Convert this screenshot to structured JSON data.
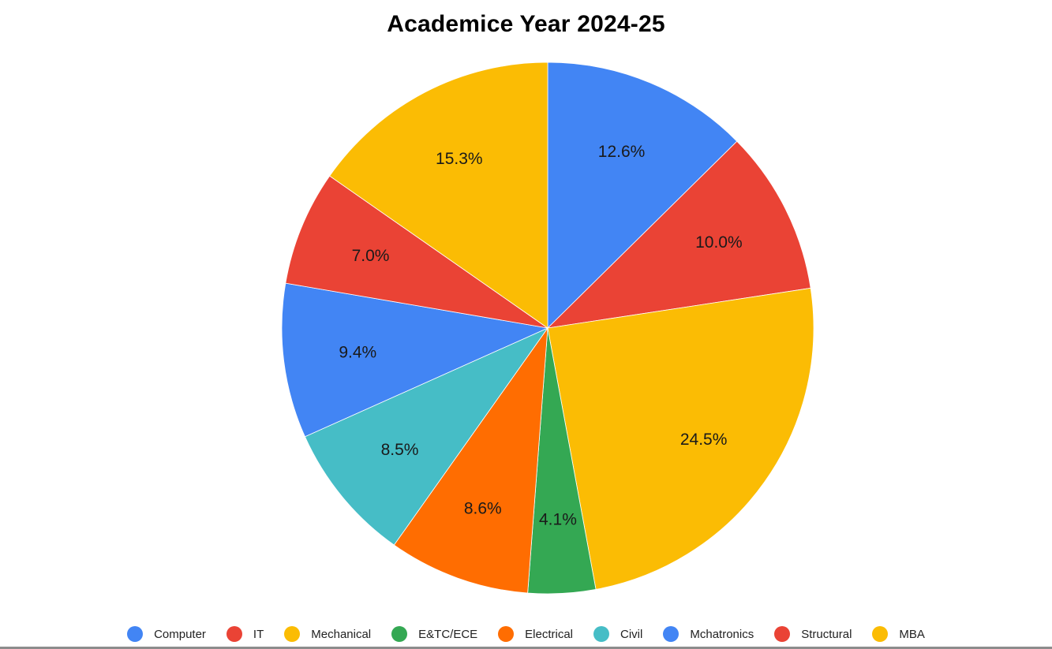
{
  "chart_data": {
    "type": "pie",
    "title": "Academice Year 2024-25",
    "start_angle_deg": 0,
    "direction": "clockwise",
    "categories": [
      "Computer",
      "IT",
      "Mechanical",
      "E&TC/ECE",
      "Electrical",
      "Civil",
      "Mchatronics",
      "Structural",
      "MBA"
    ],
    "values": [
      12.6,
      10.0,
      24.5,
      4.1,
      8.6,
      8.5,
      9.4,
      7.0,
      15.3
    ],
    "labels": [
      "12.6%",
      "10.0%",
      "24.5%",
      "4.1%",
      "8.6%",
      "8.5%",
      "9.4%",
      "7.0%",
      "15.3%"
    ],
    "colors": [
      "#4285f4",
      "#ea4335",
      "#fbbc04",
      "#34a853",
      "#ff6d01",
      "#46bdc6",
      "#4285f4",
      "#ea4335",
      "#fbbc04"
    ],
    "legend_position": "bottom",
    "unit": "%"
  },
  "legend": {
    "items": [
      {
        "label": "Computer",
        "color": "#4285f4"
      },
      {
        "label": "IT",
        "color": "#ea4335"
      },
      {
        "label": "Mechanical",
        "color": "#fbbc04"
      },
      {
        "label": "E&TC/ECE",
        "color": "#34a853"
      },
      {
        "label": "Electrical",
        "color": "#ff6d01"
      },
      {
        "label": "Civil",
        "color": "#46bdc6"
      },
      {
        "label": "Mchatronics",
        "color": "#4285f4"
      },
      {
        "label": "Structural",
        "color": "#ea4335"
      },
      {
        "label": "MBA",
        "color": "#fbbc04"
      }
    ]
  }
}
